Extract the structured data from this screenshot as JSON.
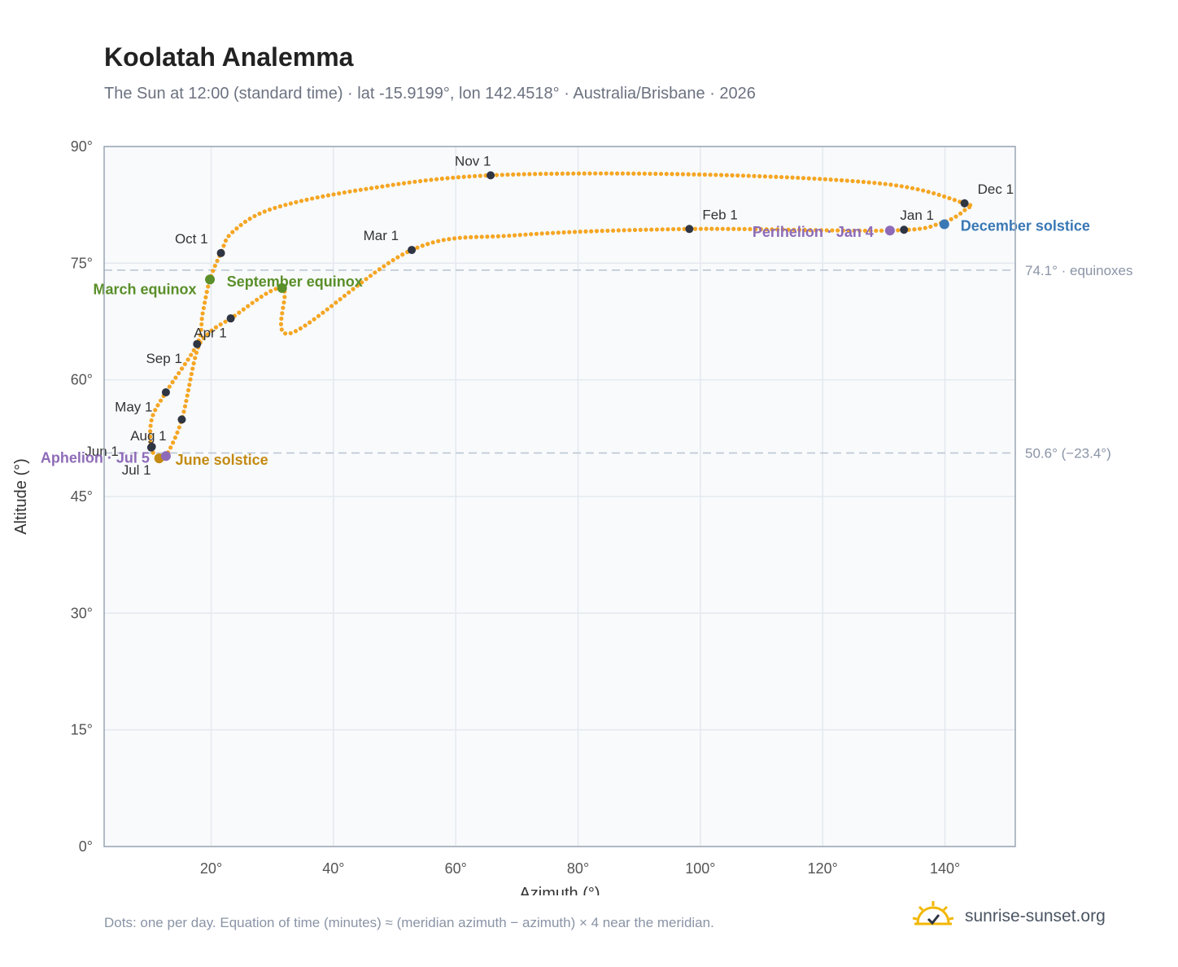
{
  "page": {
    "title": "Koolatah Analemma",
    "subtitle": "The Sun at 12:00 (standard time) · lat -15.9199°, lon 142.4518° · Australia/Brisbane · 2026",
    "footnote": "Dots: one per day. Equation of time (minutes) ≈ (meridian azimuth − azimuth) × 4 near the meridian.",
    "brand": "sunrise-sunset.org"
  },
  "colors": {
    "curve": "#f5a623",
    "month_marker": "#2f3542",
    "equinox": "#5a8f29",
    "june_solstice": "#c48a12",
    "december_solstice": "#3a78b5",
    "apsis": "#8e6bb8",
    "reference_line": "#b8c4d0",
    "plot_bg": "#f8fafc",
    "grid": "#e4e9ef",
    "frame": "#9aa5b4"
  },
  "chart_data": {
    "type": "scatter",
    "title": "Koolatah Analemma",
    "xlabel": "Azimuth (°)",
    "ylabel": "Altitude (°)",
    "xlim": [
      2.5,
      151.5
    ],
    "ylim": [
      0,
      90
    ],
    "x_ticks": [
      20,
      40,
      60,
      80,
      100,
      120,
      140
    ],
    "x_tick_labels": [
      "20°",
      "40°",
      "60°",
      "80°",
      "100°",
      "120°",
      "140°"
    ],
    "y_ticks": [
      0,
      15,
      30,
      45,
      60,
      75,
      90
    ],
    "y_tick_labels": [
      "0°",
      "15°",
      "30°",
      "45°",
      "60°",
      "75°",
      "90°"
    ],
    "grid": true,
    "path_anchors": [
      {
        "x": 33.0,
        "y": 66.0
      },
      {
        "x": 52.8,
        "y": 76.7
      },
      {
        "x": 70.0,
        "y": 78.6
      },
      {
        "x": 98.2,
        "y": 79.4
      },
      {
        "x": 131.0,
        "y": 79.2
      },
      {
        "x": 139.5,
        "y": 80.2
      },
      {
        "x": 143.5,
        "y": 82.0
      },
      {
        "x": 143.2,
        "y": 82.7
      },
      {
        "x": 130.0,
        "y": 85.2
      },
      {
        "x": 100.0,
        "y": 86.4
      },
      {
        "x": 65.7,
        "y": 86.3
      },
      {
        "x": 45.0,
        "y": 84.5
      },
      {
        "x": 30.0,
        "y": 82.0
      },
      {
        "x": 23.5,
        "y": 79.0
      },
      {
        "x": 21.6,
        "y": 76.3
      },
      {
        "x": 19.8,
        "y": 72.9
      },
      {
        "x": 18.6,
        "y": 68.5
      },
      {
        "x": 17.7,
        "y": 64.6
      },
      {
        "x": 12.6,
        "y": 58.4
      },
      {
        "x": 10.3,
        "y": 55.0
      },
      {
        "x": 10.2,
        "y": 51.3
      },
      {
        "x": 11.5,
        "y": 49.9
      },
      {
        "x": 12.6,
        "y": 50.2
      },
      {
        "x": 15.2,
        "y": 54.9
      },
      {
        "x": 17.6,
        "y": 63.5
      },
      {
        "x": 19.6,
        "y": 66.0
      },
      {
        "x": 23.2,
        "y": 67.9
      },
      {
        "x": 31.6,
        "y": 71.8
      }
    ],
    "month_markers": [
      {
        "label": "Jan 1",
        "x": 133.3,
        "y": 79.3
      },
      {
        "label": "Feb 1",
        "x": 98.2,
        "y": 79.4
      },
      {
        "label": "Mar 1",
        "x": 52.8,
        "y": 76.7
      },
      {
        "label": "Apr 1",
        "x": 17.7,
        "y": 64.6
      },
      {
        "label": "May 1",
        "x": 15.2,
        "y": 54.9
      },
      {
        "label": "Jun 1",
        "x": 10.2,
        "y": 51.3
      },
      {
        "label": "Jul 1",
        "x": 11.5,
        "y": 49.9
      },
      {
        "label": "Aug 1",
        "x": 10.3,
        "y": 51.4
      },
      {
        "label": "Sep 1",
        "x": 12.6,
        "y": 58.4
      },
      {
        "label": "Oct 1",
        "x": 21.6,
        "y": 76.3
      },
      {
        "label": "Nov 1",
        "x": 65.7,
        "y": 86.3
      },
      {
        "label": "Dec 1",
        "x": 143.2,
        "y": 82.7
      },
      {
        "label": "",
        "x": 23.2,
        "y": 67.9
      }
    ],
    "events": [
      {
        "label": "March equinox",
        "x": 19.8,
        "y": 72.9,
        "kind": "equinox"
      },
      {
        "label": "September equinox",
        "x": 31.6,
        "y": 71.8,
        "kind": "equinox"
      },
      {
        "label": "June solstice",
        "x": 11.5,
        "y": 49.9,
        "kind": "june_solstice"
      },
      {
        "label": "December solstice",
        "x": 139.9,
        "y": 80.0,
        "kind": "december_solstice"
      },
      {
        "label": "Perihelion · Jan 4",
        "x": 131.0,
        "y": 79.2,
        "kind": "apsis"
      },
      {
        "label": "Aphelion · Jul 5",
        "x": 12.6,
        "y": 50.2,
        "kind": "apsis"
      }
    ],
    "reference_lines": [
      {
        "y": 74.1,
        "label": "74.1° · equinoxes"
      },
      {
        "y": 50.6,
        "label": "50.6° (−23.4°)"
      }
    ]
  }
}
